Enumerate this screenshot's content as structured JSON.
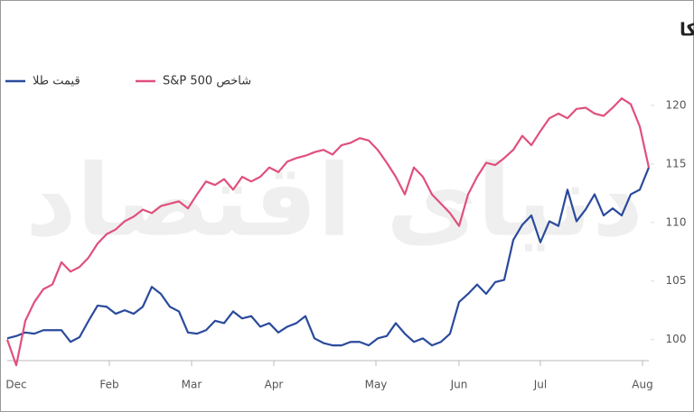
{
  "chart_data": {
    "type": "line",
    "title": "سبقت طلا از بازار سهام آمریکا",
    "watermark": "دنیای اقتصاد",
    "x": [
      0,
      1,
      2,
      3,
      4,
      5,
      6,
      7,
      8,
      9,
      10,
      11,
      12,
      13,
      14,
      15,
      16,
      17,
      18,
      19,
      20,
      21,
      22,
      23,
      24,
      25,
      26,
      27,
      28,
      29,
      30,
      31,
      32,
      33,
      34,
      35,
      36,
      37,
      38,
      39,
      40,
      41,
      42,
      43,
      44,
      45,
      46,
      47,
      48,
      49,
      50,
      51,
      52,
      53,
      54,
      55,
      56,
      57,
      58,
      59,
      60,
      61,
      62,
      63,
      64,
      65,
      66,
      67,
      68,
      69,
      70,
      71
    ],
    "xlim": [
      0,
      71
    ],
    "xticks": [
      {
        "value": 1,
        "label": "Dec"
      },
      {
        "value": 11.3,
        "label": "Feb"
      },
      {
        "value": 20.4,
        "label": "Mar"
      },
      {
        "value": 29.5,
        "label": "Apr"
      },
      {
        "value": 40.8,
        "label": "May"
      },
      {
        "value": 50,
        "label": "Jun"
      },
      {
        "value": 59,
        "label": "Jul"
      },
      {
        "value": 70.3,
        "label": "Aug"
      }
    ],
    "ylim": [
      98.2,
      121.3
    ],
    "yticks": [
      100,
      105,
      110,
      115,
      120
    ],
    "legend": "top-left",
    "series": [
      {
        "name": "قیمت طلا",
        "color": "#2a4a9c",
        "values": [
          100.1,
          100.3,
          100.6,
          100.5,
          100.8,
          100.8,
          100.8,
          99.8,
          100.2,
          101.6,
          102.9,
          102.8,
          102.2,
          102.5,
          102.2,
          102.8,
          104.5,
          103.9,
          102.8,
          102.4,
          100.6,
          100.5,
          100.8,
          101.6,
          101.4,
          102.4,
          101.8,
          102.0,
          101.1,
          101.4,
          100.6,
          101.1,
          101.4,
          102.0,
          100.1,
          99.7,
          99.5,
          99.5,
          99.8,
          99.8,
          99.5,
          100.1,
          100.3,
          101.4,
          100.5,
          99.8,
          100.1,
          99.5,
          99.8,
          100.5,
          103.2,
          103.9,
          104.7,
          103.9,
          104.9,
          105.1,
          108.5,
          109.8,
          110.6,
          108.3,
          110.1,
          109.7,
          112.8,
          110.1,
          111.1,
          112.4,
          110.6,
          111.2,
          110.6,
          112.4,
          112.8,
          114.7
        ]
      },
      {
        "name": "شاخص S&P 500",
        "color": "#e0507c",
        "values": [
          100,
          97.8,
          101.6,
          103.2,
          104.3,
          104.7,
          106.6,
          105.8,
          106.2,
          107,
          108.2,
          109,
          109.4,
          110.1,
          110.5,
          111.1,
          110.8,
          111.4,
          111.6,
          111.8,
          111.2,
          112.4,
          113.5,
          113.2,
          113.7,
          112.8,
          113.9,
          113.5,
          113.9,
          114.7,
          114.3,
          115.2,
          115.5,
          115.7,
          116,
          116.2,
          115.8,
          116.6,
          116.8,
          117.2,
          117,
          116.2,
          115.1,
          113.9,
          112.4,
          114.7,
          113.9,
          112.4,
          111.6,
          110.8,
          109.7,
          112.4,
          113.9,
          115.1,
          114.9,
          115.5,
          116.2,
          117.4,
          116.6,
          117.8,
          118.9,
          119.3,
          118.9,
          119.7,
          119.8,
          119.3,
          119.1,
          119.8,
          120.6,
          120.1,
          118.2,
          114.7
        ]
      }
    ]
  }
}
